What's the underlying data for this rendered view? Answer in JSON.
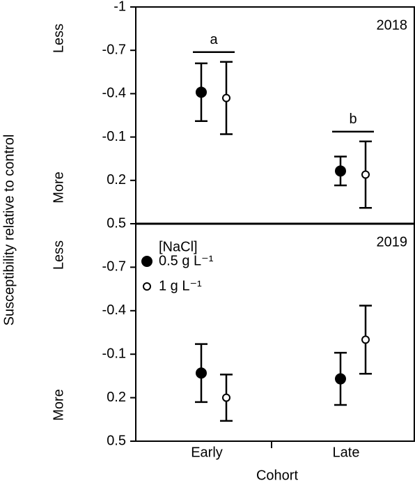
{
  "chart_data": [
    {
      "type": "errorbar",
      "title": "2018",
      "ylabel": "Susceptibility relative to control",
      "direction_labels": [
        "Less",
        "More"
      ],
      "ylim": [
        -1,
        0.5
      ],
      "yticks": [
        -1,
        -0.7,
        -0.4,
        -0.1,
        0.2,
        0.5
      ],
      "annotations": [
        "a",
        "b"
      ],
      "series": [
        {
          "color": "#000000",
          "values": [
            -0.41,
            0.135
          ],
          "errors": [
            0.2,
            0.1
          ]
        },
        {
          "color": "#ffffff",
          "values": [
            -0.37,
            0.16
          ],
          "errors": [
            0.25,
            0.23
          ]
        }
      ]
    },
    {
      "type": "errorbar",
      "title": "2019",
      "xlabel": "Cohort",
      "direction_labels": [
        "Less",
        "More"
      ],
      "categories": [
        "Early",
        "Late"
      ],
      "legend_title": "[NaCl]",
      "ylim": [
        -1,
        0.5
      ],
      "yticks": [
        -0.7,
        -0.4,
        -0.1,
        0.2,
        0.5
      ],
      "series": [
        {
          "name": "0.5 g L⁻¹",
          "color": "#000000",
          "values": [
            0.03,
            0.07
          ],
          "errors": [
            0.2,
            0.18
          ]
        },
        {
          "name": "1 g L⁻¹",
          "color": "#ffffff",
          "values": [
            0.2,
            -0.2
          ],
          "errors": [
            0.16,
            0.235
          ]
        }
      ]
    }
  ]
}
